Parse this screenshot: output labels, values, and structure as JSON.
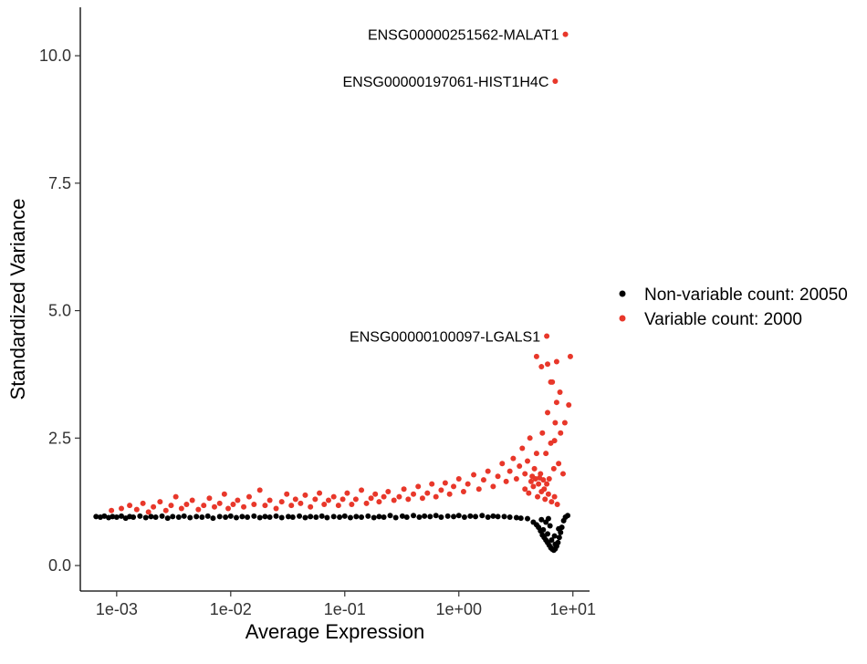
{
  "chart_data": {
    "type": "scatter",
    "title": "",
    "xlabel": "Average Expression",
    "ylabel": "Standardized Variance",
    "x_scale": "log10",
    "xlim": [
      0.00048,
      14
    ],
    "ylim": [
      -0.5,
      10.95
    ],
    "x_ticks": [
      {
        "value": 0.001,
        "label": "1e-03"
      },
      {
        "value": 0.01,
        "label": "1e-02"
      },
      {
        "value": 0.1,
        "label": "1e-01"
      },
      {
        "value": 1,
        "label": "1e+00"
      },
      {
        "value": 10,
        "label": "1e+01"
      }
    ],
    "y_ticks": [
      {
        "value": 0,
        "label": "0.0"
      },
      {
        "value": 2.5,
        "label": "2.5"
      },
      {
        "value": 5,
        "label": "5.0"
      },
      {
        "value": 7.5,
        "label": "7.5"
      },
      {
        "value": 10,
        "label": "10.0"
      }
    ],
    "grid": false,
    "legend_position": "right",
    "series": [
      {
        "name": "Non-variable count: 20050",
        "color": "#000000",
        "points": [
          [
            0.00066,
            0.96
          ],
          [
            0.00072,
            0.95
          ],
          [
            0.00078,
            0.97
          ],
          [
            0.00085,
            0.94
          ],
          [
            0.00092,
            0.96
          ],
          [
            0.001,
            0.95
          ],
          [
            0.0011,
            0.97
          ],
          [
            0.0012,
            0.93
          ],
          [
            0.0013,
            0.96
          ],
          [
            0.0014,
            0.95
          ],
          [
            0.0016,
            0.97
          ],
          [
            0.0018,
            0.94
          ],
          [
            0.002,
            0.96
          ],
          [
            0.0022,
            0.95
          ],
          [
            0.0025,
            0.97
          ],
          [
            0.0028,
            0.93
          ],
          [
            0.0031,
            0.96
          ],
          [
            0.0035,
            0.95
          ],
          [
            0.0039,
            0.97
          ],
          [
            0.0044,
            0.94
          ],
          [
            0.005,
            0.96
          ],
          [
            0.0056,
            0.95
          ],
          [
            0.0063,
            0.97
          ],
          [
            0.007,
            0.93
          ],
          [
            0.008,
            0.96
          ],
          [
            0.009,
            0.95
          ],
          [
            0.01,
            0.97
          ],
          [
            0.0112,
            0.94
          ],
          [
            0.0126,
            0.96
          ],
          [
            0.014,
            0.95
          ],
          [
            0.016,
            0.97
          ],
          [
            0.018,
            0.94
          ],
          [
            0.02,
            0.96
          ],
          [
            0.022,
            0.95
          ],
          [
            0.025,
            0.97
          ],
          [
            0.028,
            0.94
          ],
          [
            0.032,
            0.96
          ],
          [
            0.035,
            0.95
          ],
          [
            0.04,
            0.97
          ],
          [
            0.045,
            0.94
          ],
          [
            0.05,
            0.96
          ],
          [
            0.056,
            0.95
          ],
          [
            0.063,
            0.97
          ],
          [
            0.07,
            0.94
          ],
          [
            0.08,
            0.96
          ],
          [
            0.09,
            0.95
          ],
          [
            0.1,
            0.97
          ],
          [
            0.112,
            0.94
          ],
          [
            0.126,
            0.96
          ],
          [
            0.14,
            0.95
          ],
          [
            0.16,
            0.97
          ],
          [
            0.18,
            0.94
          ],
          [
            0.2,
            0.96
          ],
          [
            0.22,
            0.95
          ],
          [
            0.25,
            0.98
          ],
          [
            0.28,
            0.94
          ],
          [
            0.32,
            0.97
          ],
          [
            0.35,
            0.95
          ],
          [
            0.4,
            0.98
          ],
          [
            0.45,
            0.95
          ],
          [
            0.5,
            0.97
          ],
          [
            0.56,
            0.96
          ],
          [
            0.63,
            0.98
          ],
          [
            0.7,
            0.95
          ],
          [
            0.8,
            0.97
          ],
          [
            0.9,
            0.96
          ],
          [
            1.0,
            0.98
          ],
          [
            1.12,
            0.95
          ],
          [
            1.26,
            0.97
          ],
          [
            1.4,
            0.96
          ],
          [
            1.6,
            0.98
          ],
          [
            1.8,
            0.95
          ],
          [
            2.0,
            0.97
          ],
          [
            2.2,
            0.96
          ],
          [
            2.5,
            0.96
          ],
          [
            2.8,
            0.95
          ],
          [
            3.2,
            0.94
          ],
          [
            3.5,
            0.93
          ],
          [
            4.0,
            0.92
          ],
          [
            4.5,
            0.85
          ],
          [
            4.8,
            0.8
          ],
          [
            5.0,
            0.75
          ],
          [
            5.2,
            0.68
          ],
          [
            5.4,
            0.6
          ],
          [
            5.6,
            0.55
          ],
          [
            5.8,
            0.5
          ],
          [
            6.0,
            0.45
          ],
          [
            6.2,
            0.4
          ],
          [
            6.4,
            0.35
          ],
          [
            6.6,
            0.32
          ],
          [
            6.8,
            0.3
          ],
          [
            7.0,
            0.33
          ],
          [
            7.2,
            0.38
          ],
          [
            7.4,
            0.45
          ],
          [
            7.6,
            0.55
          ],
          [
            7.8,
            0.65
          ],
          [
            8.0,
            0.75
          ],
          [
            8.3,
            0.88
          ],
          [
            8.6,
            0.95
          ],
          [
            9.0,
            0.98
          ],
          [
            5.5,
            0.7
          ],
          [
            6.0,
            0.62
          ],
          [
            6.5,
            0.5
          ],
          [
            7.0,
            0.42
          ],
          [
            5.8,
            0.85
          ],
          [
            6.3,
            0.78
          ],
          [
            6.9,
            0.58
          ],
          [
            7.5,
            0.72
          ],
          [
            5.3,
            0.9
          ],
          [
            6.1,
            0.92
          ]
        ]
      },
      {
        "name": "Variable count: 2000",
        "color": "#E8372A",
        "points": [
          [
            0.0009,
            1.08
          ],
          [
            0.0011,
            1.12
          ],
          [
            0.0013,
            1.18
          ],
          [
            0.0015,
            1.1
          ],
          [
            0.0017,
            1.22
          ],
          [
            0.0019,
            1.05
          ],
          [
            0.0021,
            1.15
          ],
          [
            0.0024,
            1.25
          ],
          [
            0.0027,
            1.08
          ],
          [
            0.003,
            1.18
          ],
          [
            0.0033,
            1.35
          ],
          [
            0.0037,
            1.12
          ],
          [
            0.0041,
            1.2
          ],
          [
            0.0046,
            1.28
          ],
          [
            0.0052,
            1.1
          ],
          [
            0.0058,
            1.18
          ],
          [
            0.0065,
            1.32
          ],
          [
            0.0072,
            1.15
          ],
          [
            0.008,
            1.22
          ],
          [
            0.0088,
            1.4
          ],
          [
            0.0095,
            1.12
          ],
          [
            0.0105,
            1.2
          ],
          [
            0.0115,
            1.28
          ],
          [
            0.013,
            1.15
          ],
          [
            0.0145,
            1.35
          ],
          [
            0.016,
            1.2
          ],
          [
            0.018,
            1.48
          ],
          [
            0.02,
            1.18
          ],
          [
            0.022,
            1.28
          ],
          [
            0.025,
            1.12
          ],
          [
            0.028,
            1.25
          ],
          [
            0.031,
            1.4
          ],
          [
            0.034,
            1.18
          ],
          [
            0.037,
            1.3
          ],
          [
            0.041,
            1.22
          ],
          [
            0.045,
            1.38
          ],
          [
            0.05,
            1.15
          ],
          [
            0.055,
            1.3
          ],
          [
            0.06,
            1.42
          ],
          [
            0.066,
            1.2
          ],
          [
            0.072,
            1.28
          ],
          [
            0.08,
            1.35
          ],
          [
            0.088,
            1.18
          ],
          [
            0.096,
            1.3
          ],
          [
            0.105,
            1.42
          ],
          [
            0.115,
            1.2
          ],
          [
            0.125,
            1.3
          ],
          [
            0.14,
            1.48
          ],
          [
            0.155,
            1.22
          ],
          [
            0.17,
            1.32
          ],
          [
            0.185,
            1.4
          ],
          [
            0.2,
            1.25
          ],
          [
            0.22,
            1.35
          ],
          [
            0.24,
            1.45
          ],
          [
            0.27,
            1.28
          ],
          [
            0.3,
            1.35
          ],
          [
            0.33,
            1.5
          ],
          [
            0.36,
            1.3
          ],
          [
            0.4,
            1.4
          ],
          [
            0.44,
            1.55
          ],
          [
            0.48,
            1.32
          ],
          [
            0.53,
            1.42
          ],
          [
            0.58,
            1.6
          ],
          [
            0.63,
            1.35
          ],
          [
            0.7,
            1.48
          ],
          [
            0.76,
            1.62
          ],
          [
            0.83,
            1.4
          ],
          [
            0.9,
            1.55
          ],
          [
            1.0,
            1.7
          ],
          [
            1.1,
            1.45
          ],
          [
            1.2,
            1.6
          ],
          [
            1.35,
            1.78
          ],
          [
            1.5,
            1.5
          ],
          [
            1.65,
            1.68
          ],
          [
            1.8,
            1.85
          ],
          [
            2.0,
            1.55
          ],
          [
            2.2,
            1.75
          ],
          [
            2.4,
            2.0
          ],
          [
            2.6,
            1.65
          ],
          [
            2.8,
            1.85
          ],
          [
            3.0,
            2.1
          ],
          [
            3.2,
            1.7
          ],
          [
            3.4,
            1.95
          ],
          [
            3.6,
            2.3
          ],
          [
            3.8,
            1.8
          ],
          [
            4.0,
            2.05
          ],
          [
            4.2,
            2.5
          ],
          [
            4.4,
            1.75
          ],
          [
            4.6,
            1.9
          ],
          [
            4.8,
            2.2
          ],
          [
            5.0,
            1.6
          ],
          [
            5.2,
            1.8
          ],
          [
            5.4,
            2.6
          ],
          [
            5.6,
            1.5
          ],
          [
            5.8,
            2.2
          ],
          [
            6.0,
            3.0
          ],
          [
            6.2,
            1.7
          ],
          [
            6.4,
            2.4
          ],
          [
            6.6,
            3.6
          ],
          [
            6.8,
            1.9
          ],
          [
            7.0,
            2.8
          ],
          [
            7.2,
            3.2
          ],
          [
            7.5,
            2.0
          ],
          [
            7.8,
            2.6
          ],
          [
            8.2,
            1.8
          ],
          [
            3.8,
            1.5
          ],
          [
            4.1,
            1.42
          ],
          [
            4.5,
            1.55
          ],
          [
            4.9,
            1.35
          ],
          [
            5.3,
            1.45
          ],
          [
            5.7,
            1.3
          ],
          [
            6.1,
            1.4
          ],
          [
            6.5,
            1.25
          ],
          [
            6.9,
            1.35
          ],
          [
            7.3,
            1.2
          ],
          [
            4.3,
            1.65
          ],
          [
            4.7,
            1.7
          ],
          [
            5.1,
            1.72
          ],
          [
            5.5,
            1.68
          ],
          [
            5.9,
            1.6
          ],
          [
            4.8,
            4.1
          ],
          [
            5.3,
            3.9
          ],
          [
            6.0,
            3.95
          ],
          [
            6.4,
            3.6
          ],
          [
            7.2,
            4.0
          ],
          [
            9.5,
            4.1
          ],
          [
            8.5,
            2.8
          ],
          [
            9.2,
            3.15
          ],
          [
            7.7,
            3.4
          ],
          [
            6.9,
            2.45
          ],
          [
            5.9,
            4.5
          ],
          [
            8.6,
            10.42
          ],
          [
            7.0,
            9.5
          ]
        ]
      }
    ],
    "annotations": [
      {
        "text": "ENSG00000251562-MALAT1",
        "x": 8.6,
        "y": 10.42
      },
      {
        "text": "ENSG00000197061-HIST1H4C",
        "x": 7.0,
        "y": 9.5
      },
      {
        "text": "ENSG00000100097-LGALS1",
        "x": 5.9,
        "y": 4.5
      }
    ]
  }
}
